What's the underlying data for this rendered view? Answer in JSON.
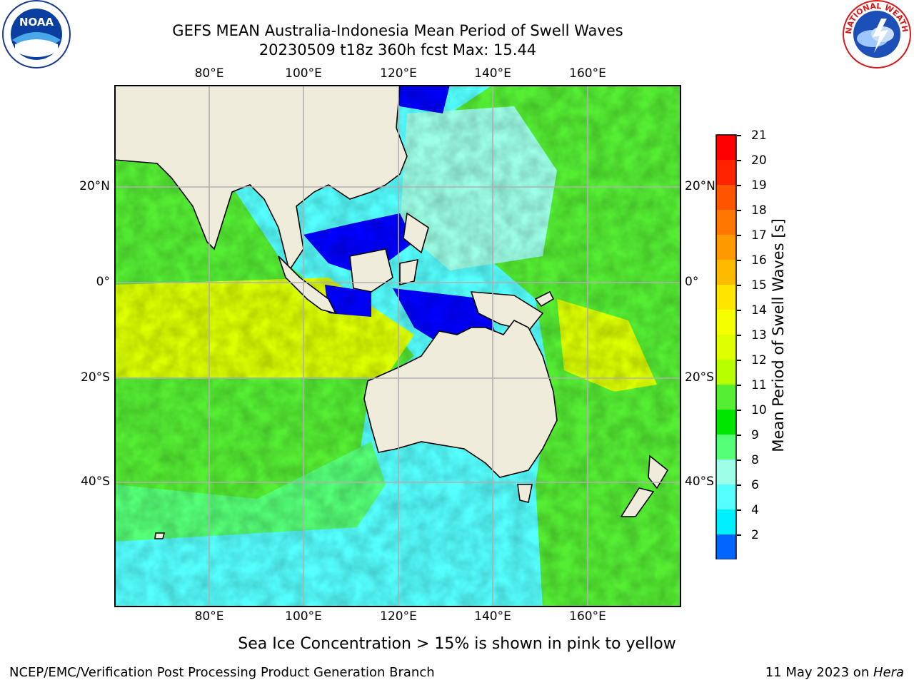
{
  "title": {
    "line1": "GEFS MEAN Australia-Indonesia Mean Period of Swell Waves",
    "line2": "20230509 t18z 360h fcst   Max: 15.44"
  },
  "axes": {
    "lon_ticks": [
      "80°E",
      "100°E",
      "120°E",
      "140°E",
      "160°E"
    ],
    "lat_ticks": [
      "20°N",
      "0°",
      "20°S",
      "40°S"
    ]
  },
  "colorbar": {
    "title": "Mean Period of Swell Waves [s]",
    "labels": [
      "21",
      "20",
      "19",
      "18",
      "17",
      "16",
      "15",
      "14",
      "13",
      "12",
      "11",
      "10",
      "9",
      "8",
      "6",
      "4",
      "2"
    ],
    "colors": [
      "#ff0000",
      "#ff2200",
      "#ff5500",
      "#ff7700",
      "#ff9900",
      "#ffbb00",
      "#ffe600",
      "#f5ff00",
      "#ddff00",
      "#b8ff00",
      "#55ee33",
      "#00e600",
      "#55ff77",
      "#9dffe7",
      "#55ffff",
      "#00f0ff",
      "#0066ff"
    ],
    "triangle_color": "#0000ff"
  },
  "logos": {
    "noaa_text": "NOAA",
    "nws_text": "NATIONAL WEATHER SERVICE"
  },
  "note": "Sea Ice Concentration > 15% is shown in pink to yellow",
  "footer": {
    "left": "NCEP/EMC/Verification Post Processing Product Generation Branch",
    "right_date": "11 May 2023 on ",
    "right_machine": "Hera"
  }
}
